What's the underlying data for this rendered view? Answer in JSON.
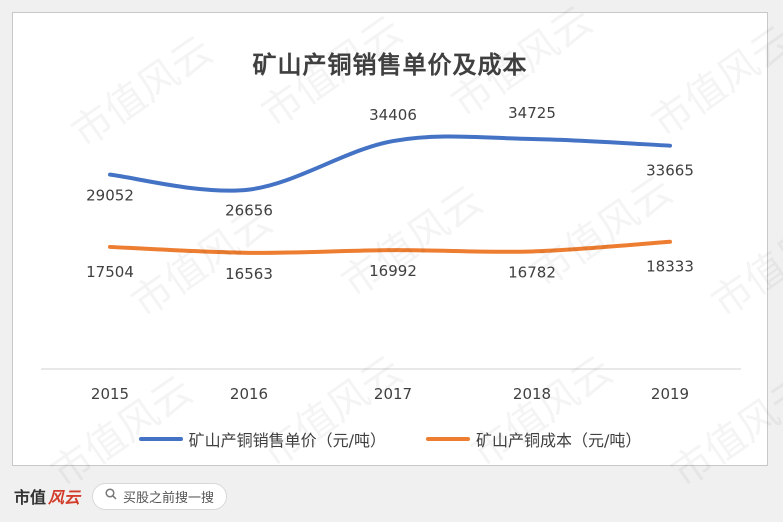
{
  "chart_data": {
    "type": "line",
    "title": "矿山产铜销售单价及成本",
    "categories": [
      "2015",
      "2016",
      "2017",
      "2018",
      "2019"
    ],
    "series": [
      {
        "name": "矿山产铜销售单价（元/吨）",
        "color": "#4472c4",
        "values": [
          29052,
          26656,
          34406,
          34725,
          33665
        ]
      },
      {
        "name": "矿山产铜成本（元/吨）",
        "color": "#ed7d31",
        "values": [
          17504,
          16563,
          16992,
          16782,
          18333
        ]
      }
    ],
    "legend_position": "bottom",
    "grid": false
  },
  "footer": {
    "brand": "市值",
    "brand_mark": "风云",
    "search_placeholder": "买股之前搜一搜"
  },
  "watermark_text": "市值风云"
}
